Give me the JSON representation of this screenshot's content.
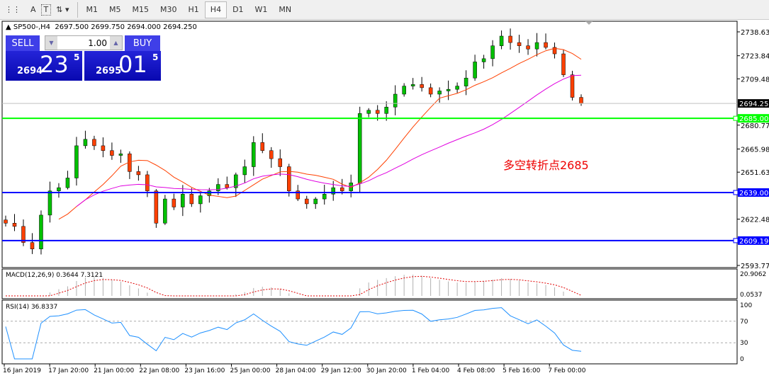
{
  "toolbar": {
    "tools": [
      "A",
      "T"
    ],
    "timeframes": [
      "M1",
      "M5",
      "M15",
      "M30",
      "H1",
      "H4",
      "D1",
      "W1",
      "MN"
    ],
    "active": "H4"
  },
  "header": {
    "symbol": "SP500-,H4",
    "open": "2697.500",
    "high": "2699.750",
    "low": "2694.000",
    "close": "2694.250"
  },
  "trade": {
    "sell_label": "SELL",
    "buy_label": "BUY",
    "lot": "1.00",
    "sell_small": "2694",
    "sell_big": "23",
    "sell_sup": "5",
    "buy_small": "2695",
    "buy_big": "01",
    "buy_sup": "5"
  },
  "annotation": "多空转折点2685",
  "colors": {
    "bull": "#00c000",
    "bear": "#ff4000",
    "ma_fast": "#ff4000",
    "ma_slow": "#e000e0",
    "support_green": "#00ff00",
    "support_blue": "#0000ff",
    "rsi": "#1e90ff",
    "macd_signal": "#e00000"
  },
  "chart_data": {
    "type": "candlestick",
    "ylim": [
      2593.775,
      2738.63
    ],
    "y_ticks": [
      "2738.630",
      "2723.840",
      "2709.485",
      "2680.775",
      "2665.985",
      "2651.630",
      "2622.485",
      "2593.775"
    ],
    "x_ticks": [
      "16 Jan 2019",
      "17 Jan 20:00",
      "21 Jan 00:00",
      "22 Jan 08:00",
      "23 Jan 16:00",
      "25 Jan 00:00",
      "28 Jan 04:00",
      "29 Jan 12:00",
      "30 Jan 20:00",
      "1 Feb 04:00",
      "4 Feb 08:00",
      "5 Feb 16:00",
      "7 Feb 00:00"
    ],
    "closes": [
      2620,
      2618,
      2608,
      2604,
      2625,
      2640,
      2642,
      2648,
      2668,
      2672,
      2668,
      2665,
      2662,
      2663,
      2652,
      2650,
      2640,
      2620,
      2635,
      2630,
      2638,
      2632,
      2637,
      2640,
      2644,
      2642,
      2650,
      2655,
      2670,
      2665,
      2660,
      2655,
      2640,
      2635,
      2632,
      2635,
      2638,
      2642,
      2640,
      2645,
      2688,
      2690,
      2688,
      2692,
      2700,
      2705,
      2706,
      2704,
      2700,
      2702,
      2703,
      2705,
      2710,
      2720,
      2722,
      2730,
      2736,
      2732,
      2730,
      2728,
      2732,
      2729,
      2725,
      2712,
      2698,
      2694.25
    ],
    "current_price": {
      "value": "2694.250"
    },
    "horizontal_lines": [
      {
        "value": "2685.000",
        "color": "#00ff00"
      },
      {
        "value": "2639.000",
        "color": "#0000ff"
      },
      {
        "value": "2609.193",
        "color": "#0000ff"
      }
    ],
    "macd": {
      "label": "MACD(12,26,9) 0.3644 7.3121",
      "ticks": [
        "20.9062",
        "0.0537"
      ]
    },
    "rsi": {
      "label": "RSI(14) 36.8337",
      "ticks": [
        "100",
        "70",
        "30",
        "0"
      ],
      "levels": [
        70,
        30
      ]
    }
  }
}
